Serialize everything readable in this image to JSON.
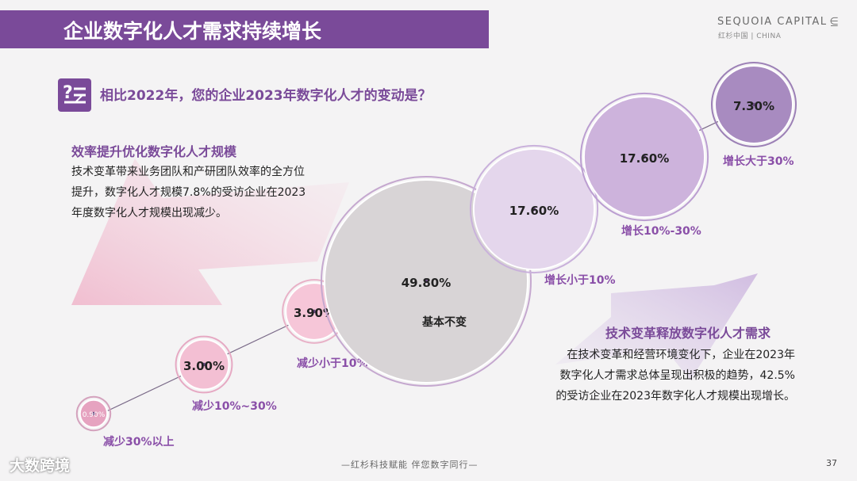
{
  "header": {
    "title": "企业数字化人才需求持续增长",
    "logo_main": "SEQUOIA CAPITAL",
    "logo_mark": "⋸",
    "logo_sub": "红杉中国 | CHINA"
  },
  "question": "相比2022年，您的企业2023年数字化人才的变动是？",
  "left_callout": {
    "title": "效率提升优化数字化人才规模",
    "body": "技术变革带来业务团队和产研团队效率的全方位提升，数字化人才规模7.8%的受访企业在2023年度数字化人才规模出现减少。"
  },
  "right_callout": {
    "title": "技术变革释放数字化人才需求",
    "lines": [
      "在技术变革和经营环境变化下，企业在2023年",
      "数字化人才需求总体呈现出积极的趋势，42.5%",
      "的受访企业在2023年数字化人才规模出现增长。"
    ]
  },
  "chart_data": {
    "type": "bubble",
    "title": "相比2022年，您的企业2023年数字化人才的变动是？",
    "unit": "%",
    "points": [
      {
        "category": "减少30%以上",
        "value": 0.9,
        "label": "0.90%"
      },
      {
        "category": "减少10%~30%",
        "value": 3.0,
        "label": "3.00%"
      },
      {
        "category": "减少小于10%",
        "value": 3.9,
        "label": "3.90%"
      },
      {
        "category": "基本不变",
        "value": 49.8,
        "label": "49.80%"
      },
      {
        "category": "增长小于10%",
        "value": 17.6,
        "label": "17.60%"
      },
      {
        "category": "增长10%-30%",
        "value": 17.6,
        "label": "17.60%"
      },
      {
        "category": "增长大于30%",
        "value": 7.3,
        "label": "7.30%"
      }
    ]
  },
  "footer": {
    "slogan": "—红杉科技赋能    伴您数字同行—",
    "page": "37",
    "watermark": "大数跨境"
  }
}
